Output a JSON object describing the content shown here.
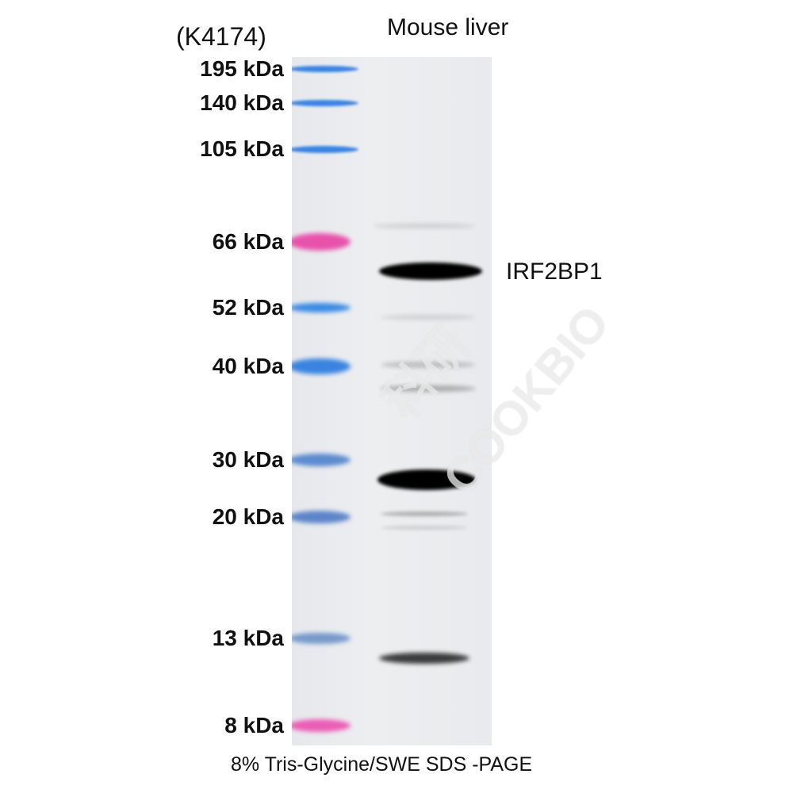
{
  "catalog_number": "(K4174)",
  "lane_label": "Mouse liver",
  "target_label": "IRF2BP1",
  "caption": "8% Tris-Glycine/SWE SDS -PAGE",
  "markers": [
    {
      "label": "195 kDa",
      "kda": 195,
      "color": "#2f7fe6"
    },
    {
      "label": "140 kDa",
      "kda": 140,
      "color": "#2f7fe6"
    },
    {
      "label": "105 kDa",
      "kda": 105,
      "color": "#2f7fe6"
    },
    {
      "label": "66 kDa",
      "kda": 66,
      "color": "#e84aa8"
    },
    {
      "label": "52 kDa",
      "kda": 52,
      "color": "#2f86e6"
    },
    {
      "label": "40 kDa",
      "kda": 40,
      "color": "#2f7fe0"
    },
    {
      "label": "30 kDa",
      "kda": 30,
      "color": "#3a74c8"
    },
    {
      "label": "20 kDa",
      "kda": 20,
      "color": "#3a6cc0"
    },
    {
      "label": "13 kDa",
      "kda": 13,
      "color": "#5a86c4"
    },
    {
      "label": "8 kDa",
      "kda": 8,
      "color": "#ee3aa8"
    }
  ],
  "watermark": "科研 COOKBIO"
}
